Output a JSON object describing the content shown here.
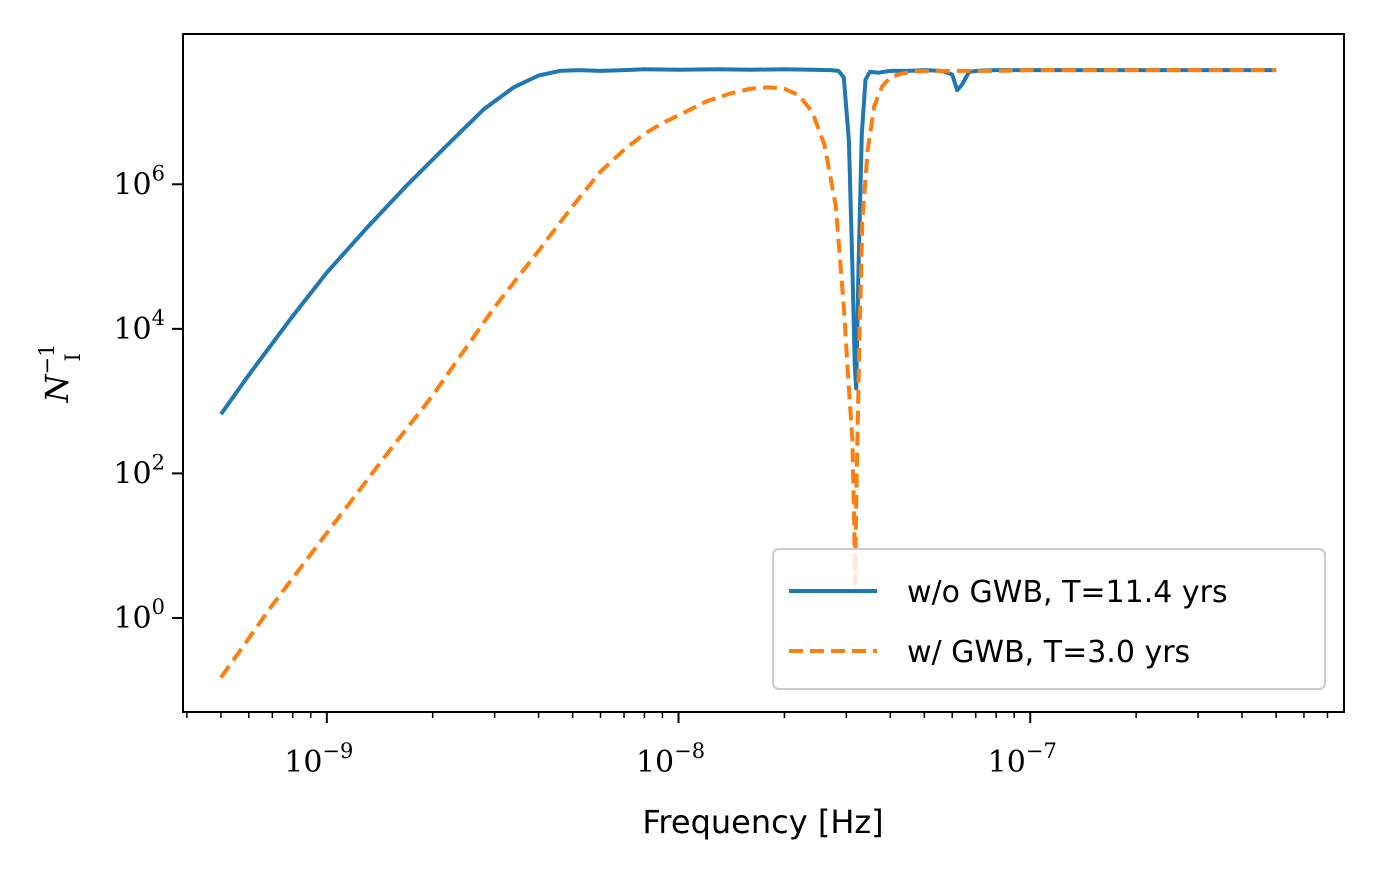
{
  "chart_data": {
    "type": "line",
    "xlabel": "Frequency [Hz]",
    "ylabel": {
      "main": "N",
      "superscript": "−1",
      "subscript": "I"
    },
    "xscale": "log",
    "yscale": "log",
    "xlim": [
      3.9e-10,
      7.8e-07
    ],
    "ylim": [
      0.05,
      120000000.0
    ],
    "x_ticks": [
      {
        "value": 1e-09,
        "base": "10",
        "exp": "−9"
      },
      {
        "value": 1e-08,
        "base": "10",
        "exp": "−8"
      },
      {
        "value": 1e-07,
        "base": "10",
        "exp": "−7"
      }
    ],
    "y_ticks": [
      {
        "value": 1,
        "base": "10",
        "exp": "0"
      },
      {
        "value": 100,
        "base": "10",
        "exp": "2"
      },
      {
        "value": 10000,
        "base": "10",
        "exp": "4"
      },
      {
        "value": 1000000,
        "base": "10",
        "exp": "6"
      }
    ],
    "grid": false,
    "legend": {
      "position": "bottom-right"
    },
    "series": [
      {
        "name": "w/o GWB, T=11.4 yrs",
        "color": "#1f77b4",
        "style": "solid",
        "x": [
          5e-10,
          6e-10,
          8e-10,
          1e-09,
          1.3e-09,
          1.7e-09,
          2.2e-09,
          2.8e-09,
          3.4e-09,
          4e-09,
          4.6e-09,
          5.2e-09,
          6e-09,
          7e-09,
          8e-09,
          1e-08,
          1.3e-08,
          1.6e-08,
          2e-08,
          2.4e-08,
          2.7e-08,
          2.85e-08,
          2.95e-08,
          3.05e-08,
          3.12e-08,
          3.17e-08,
          3.2e-08,
          3.25e-08,
          3.32e-08,
          3.4e-08,
          3.5e-08,
          3.7e-08,
          4e-08,
          4.5e-08,
          5e-08,
          5.6e-08,
          6e-08,
          6.2e-08,
          6.4e-08,
          6.7e-08,
          7.2e-08,
          8e-08,
          1e-07,
          2e-07,
          3e-07,
          5e-07
        ],
        "y": [
          660,
          2300,
          15000,
          60000,
          250000,
          1000000,
          3500000,
          11000000,
          22000000,
          32000000,
          37000000,
          38000000,
          37000000,
          38000000,
          39000000,
          38500000,
          39000000,
          38500000,
          39000000,
          38500000,
          38000000,
          37000000,
          30000000,
          4000000,
          80000,
          3000,
          1500,
          80000,
          5000000,
          28000000,
          36000000,
          35000000,
          37000000,
          37000000,
          38000000,
          37000000,
          33000000,
          20000000,
          24000000,
          36000000,
          37500000,
          38000000,
          38000000,
          38000000,
          38000000,
          38000000
        ]
      },
      {
        "name": "w/ GWB, T=3.0 yrs",
        "color": "#ff7f0e",
        "style": "dashed",
        "x": [
          5e-10,
          7e-10,
          1e-09,
          1.5e-09,
          2e-09,
          3e-09,
          4e-09,
          5e-09,
          6e-09,
          7e-09,
          8e-09,
          9e-09,
          1e-08,
          1.2e-08,
          1.4e-08,
          1.6e-08,
          1.8e-08,
          2e-08,
          2.2e-08,
          2.4e-08,
          2.6e-08,
          2.8e-08,
          2.95e-08,
          3.05e-08,
          3.12e-08,
          3.15e-08,
          3.18e-08,
          3.2e-08,
          3.23e-08,
          3.27e-08,
          3.33e-08,
          3.45e-08,
          3.6e-08,
          3.8e-08,
          4e-08,
          4.3e-08,
          4.7e-08,
          5.2e-08,
          6e-08,
          7e-08,
          8e-08,
          1e-07,
          2e-07,
          3e-07,
          5e-07
        ],
        "y": [
          0.15,
          1.5,
          15,
          200,
          1200,
          20000,
          120000,
          500000,
          1500000,
          3000000,
          5000000,
          7000000,
          9000000,
          14000000,
          18000000,
          21000000,
          22000000,
          21000000,
          17000000,
          10000000,
          3500000,
          500000,
          20000,
          1500,
          300,
          40,
          3,
          40,
          400,
          8000,
          300000,
          3000000,
          12000000,
          23000000,
          30000000,
          34000000,
          36500000,
          37000000,
          37000000,
          37000000,
          37000000,
          38000000,
          38000000,
          38000000,
          38000000
        ]
      }
    ]
  }
}
